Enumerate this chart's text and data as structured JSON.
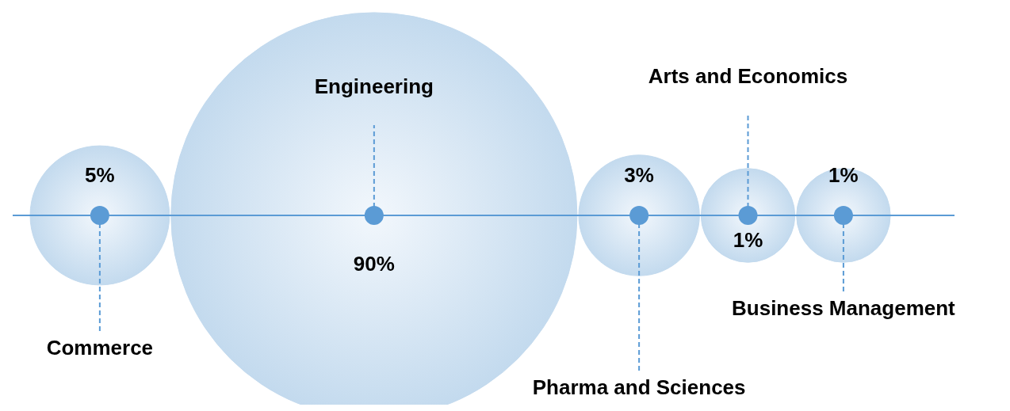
{
  "chart_data": {
    "type": "other",
    "categories": [
      "Commerce",
      "Engineering",
      "Pharma and Sciences",
      "Arts and Economics",
      "Business Management"
    ],
    "values": [
      5,
      90,
      3,
      1,
      1
    ],
    "value_labels": [
      "5%",
      "90%",
      "3%",
      "1%",
      "1%"
    ],
    "color": "#5b9bd5",
    "colors": [
      "#c3daee",
      "#c3daee",
      "#c3daee",
      "#c3daee",
      "#c3daee"
    ]
  }
}
